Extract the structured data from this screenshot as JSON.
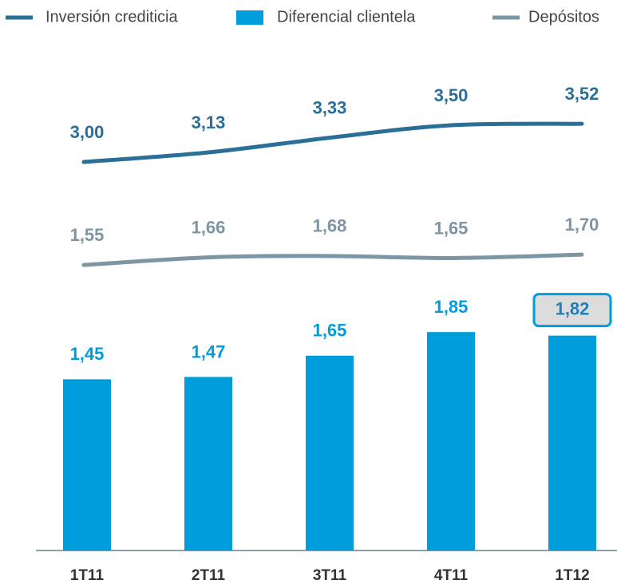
{
  "chart_data": {
    "type": "bar",
    "categories": [
      "1T11",
      "2T11",
      "3T11",
      "4T11",
      "1T12"
    ],
    "series": [
      {
        "name": "Inversión crediticia",
        "type": "line",
        "color": "#2a6f97",
        "values": [
          3.0,
          3.13,
          3.33,
          3.5,
          3.52
        ],
        "value_labels": [
          "3,00",
          "3,13",
          "3,33",
          "3,50",
          "3,52"
        ]
      },
      {
        "name": "Diferencial clientela",
        "type": "bar",
        "color": "#009ddc",
        "values": [
          1.45,
          1.47,
          1.65,
          1.85,
          1.82
        ],
        "value_labels": [
          "1,45",
          "1,47",
          "1,65",
          "1,85",
          "1,82"
        ]
      },
      {
        "name": "Depósitos",
        "type": "line",
        "color": "#7d96a3",
        "values": [
          1.55,
          1.66,
          1.68,
          1.65,
          1.7
        ],
        "value_labels": [
          "1,55",
          "1,66",
          "1,68",
          "1,65",
          "1,70"
        ]
      }
    ]
  }
}
